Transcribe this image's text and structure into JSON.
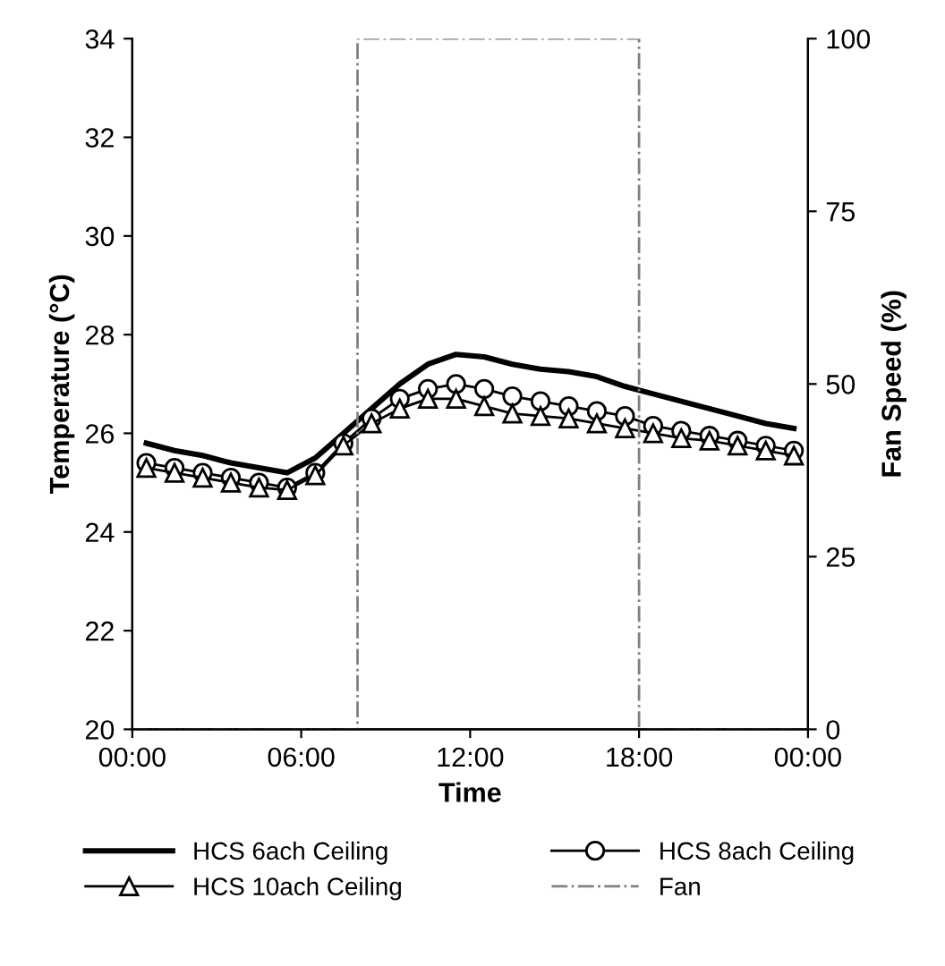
{
  "chart_data": {
    "type": "line",
    "xlabel": "Time",
    "ylabel": "Temperature (°C)",
    "y2label": "Fan Speed (%)",
    "xlim": [
      0,
      24
    ],
    "xticks": [
      {
        "value": 0,
        "label": "00:00"
      },
      {
        "value": 6,
        "label": "06:00"
      },
      {
        "value": 12,
        "label": "12:00"
      },
      {
        "value": 18,
        "label": "18:00"
      },
      {
        "value": 24,
        "label": "00:00"
      }
    ],
    "ylim": [
      20,
      34
    ],
    "yticks": [
      20,
      22,
      24,
      26,
      28,
      30,
      32,
      34
    ],
    "y2lim": [
      0,
      100
    ],
    "y2ticks": [
      0,
      25,
      50,
      75,
      100
    ],
    "grid": false,
    "legend": "bottom",
    "x": [
      0.5,
      1.5,
      2.5,
      3.5,
      4.5,
      5.5,
      6.5,
      7.5,
      8.5,
      9.5,
      10.5,
      11.5,
      12.5,
      13.5,
      14.5,
      15.5,
      16.5,
      17.5,
      18.5,
      19.5,
      20.5,
      21.5,
      22.5,
      23.5
    ],
    "series": [
      {
        "name": "HCS 6ach Ceiling",
        "color": "#000000",
        "marker": "none",
        "line_style": "solid",
        "values": [
          25.8,
          25.65,
          25.55,
          25.4,
          25.3,
          25.2,
          25.5,
          26.0,
          26.5,
          27.0,
          27.4,
          27.6,
          27.55,
          27.4,
          27.3,
          27.25,
          27.15,
          26.95,
          26.8,
          26.65,
          26.5,
          26.35,
          26.2,
          26.1
        ]
      },
      {
        "name": "HCS 8ach Ceiling",
        "color": "#000000",
        "marker": "circle",
        "line_style": "solid",
        "values": [
          25.4,
          25.3,
          25.2,
          25.1,
          25.0,
          24.9,
          25.2,
          25.8,
          26.3,
          26.7,
          26.9,
          27.0,
          26.9,
          26.75,
          26.65,
          26.55,
          26.45,
          26.35,
          26.15,
          26.05,
          25.95,
          25.85,
          25.75,
          25.65
        ]
      },
      {
        "name": "HCS 10ach Ceiling",
        "color": "#000000",
        "marker": "triangle",
        "line_style": "solid",
        "values": [
          25.3,
          25.2,
          25.1,
          25.0,
          24.9,
          24.85,
          25.15,
          25.75,
          26.2,
          26.5,
          26.7,
          26.7,
          26.55,
          26.4,
          26.35,
          26.3,
          26.2,
          26.1,
          26.0,
          25.9,
          25.85,
          25.75,
          25.65,
          25.55
        ]
      },
      {
        "name": "Fan",
        "color": "#808080",
        "marker": "none",
        "line_style": "dashdot",
        "axis": "y2",
        "x": [
          0,
          8,
          8,
          18,
          18,
          24
        ],
        "values": [
          0,
          0,
          100,
          100,
          0,
          0
        ]
      }
    ]
  }
}
